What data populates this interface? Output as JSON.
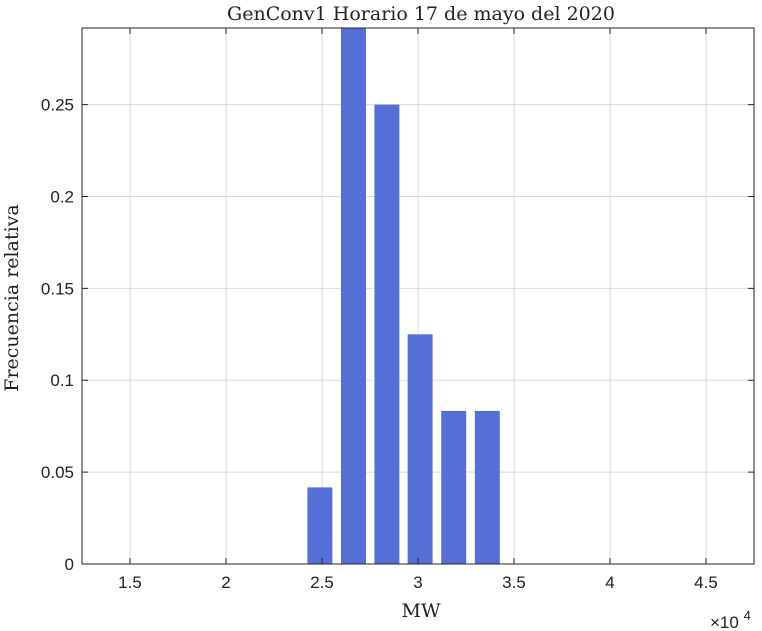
{
  "chart_data": {
    "type": "bar",
    "title": "GenConv1 Horario 17 de mayo del 2020",
    "xlabel": "MW",
    "ylabel": "Frecuencia relativa",
    "x_exponent_prefix": "×10",
    "x_exponent_power": "4",
    "xlim": [
      1.25,
      4.75
    ],
    "ylim": [
      0,
      0.2917
    ],
    "grid": true,
    "bar_color": "#5470d6",
    "x_ticks": [
      1.5,
      2,
      2.5,
      3,
      3.5,
      4,
      4.5
    ],
    "x_tick_labels": [
      "1.5",
      "2",
      "2.5",
      "3",
      "3.5",
      "4",
      "4.5"
    ],
    "y_ticks": [
      0,
      0.05,
      0.1,
      0.15,
      0.2,
      0.25
    ],
    "y_tick_labels": [
      "0",
      "0.05",
      "0.1",
      "0.15",
      "0.2",
      "0.25"
    ],
    "bar_width": 0.13,
    "x": [
      2.489,
      2.664,
      2.838,
      3.011,
      3.186,
      3.361
    ],
    "values": [
      0.0417,
      0.2917,
      0.25,
      0.125,
      0.0833,
      0.0833
    ]
  }
}
